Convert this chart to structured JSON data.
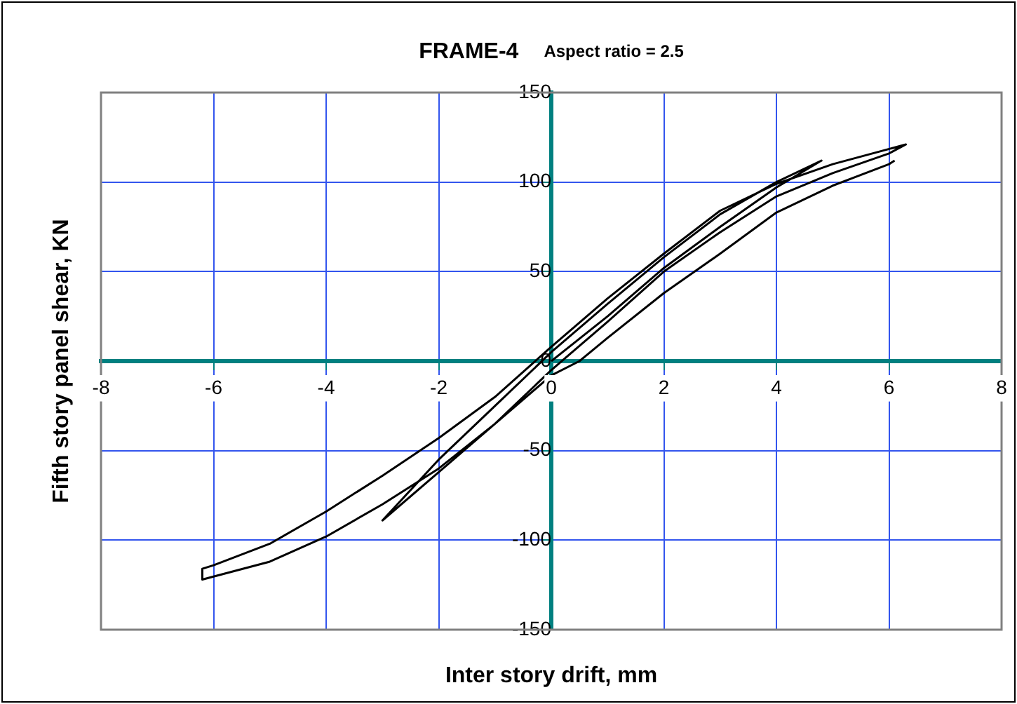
{
  "chart_data": {
    "type": "line",
    "title": "FRAME-4",
    "subtitle": "Aspect ratio = 2.5",
    "xlabel": "Inter story drift, mm",
    "ylabel": "Fifth story panel shear, KN",
    "xlim": [
      -8,
      8
    ],
    "xticks": [
      -8,
      -6,
      -4,
      -2,
      0,
      2,
      4,
      6,
      8
    ],
    "ylim": [
      -150,
      150
    ],
    "yticks": [
      -150,
      -100,
      -50,
      0,
      50,
      100,
      150
    ],
    "grid": true,
    "legend": false,
    "marker": "none",
    "line_style": "solid",
    "series": [
      {
        "color": "#000000",
        "x": [
          0,
          1,
          2,
          3,
          4,
          4.8,
          4,
          3,
          2,
          1,
          0,
          -1,
          -2,
          -3,
          -2,
          -1,
          0,
          1,
          2,
          3,
          4,
          5,
          6,
          6.3,
          5,
          4,
          3,
          2,
          1,
          0,
          -1,
          -2,
          -3,
          -4,
          -5,
          -6,
          -6.2,
          -6.2,
          -5,
          -4,
          -3,
          -2,
          -1,
          0,
          0.5,
          1,
          2,
          3,
          4,
          5,
          6,
          6.1
        ],
        "values": [
          0,
          25,
          52,
          75,
          97,
          112,
          100,
          82,
          58,
          32,
          5,
          -25,
          -55,
          -89,
          -62,
          -35,
          -5,
          22,
          50,
          72,
          92,
          105,
          116,
          121,
          110,
          99,
          84,
          60,
          35,
          8,
          -20,
          -43,
          -64,
          -84,
          -102,
          -114,
          -116,
          -122,
          -112,
          -98,
          -80,
          -60,
          -35,
          -8,
          0,
          13,
          38,
          60,
          83,
          98,
          110,
          112
        ]
      }
    ]
  }
}
